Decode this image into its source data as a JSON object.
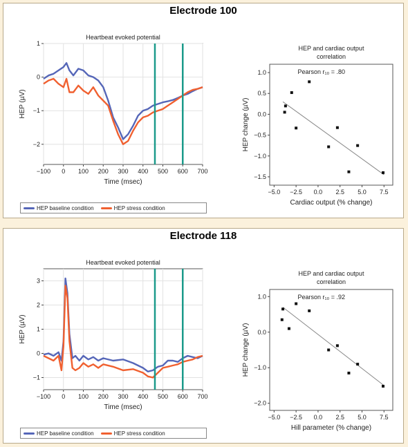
{
  "chart_data": [
    {
      "title": "Electrode 100",
      "hep": {
        "type": "line",
        "title": "Heartbeat evoked potential",
        "xlabel": "Time (msec)",
        "ylabel": "HEP (µV)",
        "xlim": [
          -100,
          700
        ],
        "ylim": [
          -2.6,
          1
        ],
        "xticks": [
          -100,
          0,
          100,
          200,
          300,
          400,
          500,
          600,
          700
        ],
        "yticks": [
          1,
          0,
          -1,
          -2
        ],
        "vlines": [
          460,
          600
        ],
        "series": [
          {
            "name": "HEP baseline condition",
            "color": "#5566b8",
            "x": [
              -100,
              -75,
              -50,
              -25,
              0,
              15,
              30,
              50,
              75,
              100,
              125,
              150,
              175,
              200,
              225,
              250,
              275,
              300,
              325,
              350,
              375,
              400,
              425,
              450,
              475,
              500,
              525,
              550,
              575,
              600,
              625,
              650,
              675,
              700
            ],
            "y": [
              -0.05,
              0.05,
              0.1,
              0.2,
              0.3,
              0.42,
              0.2,
              0.05,
              0.25,
              0.2,
              0.05,
              0.0,
              -0.1,
              -0.3,
              -0.7,
              -1.2,
              -1.5,
              -1.85,
              -1.7,
              -1.45,
              -1.15,
              -1.0,
              -0.95,
              -0.85,
              -0.8,
              -0.75,
              -0.72,
              -0.68,
              -0.62,
              -0.55,
              -0.5,
              -0.42,
              -0.35,
              -0.3
            ]
          },
          {
            "name": "HEP stress condition",
            "color": "#f06030",
            "x": [
              -100,
              -75,
              -50,
              -25,
              0,
              15,
              30,
              50,
              75,
              100,
              125,
              150,
              175,
              200,
              225,
              250,
              275,
              300,
              325,
              350,
              375,
              400,
              425,
              450,
              475,
              500,
              525,
              550,
              575,
              600,
              625,
              650,
              675,
              700
            ],
            "y": [
              -0.2,
              -0.1,
              -0.05,
              -0.2,
              -0.3,
              -0.05,
              -0.45,
              -0.45,
              -0.25,
              -0.4,
              -0.5,
              -0.3,
              -0.55,
              -0.7,
              -0.85,
              -1.3,
              -1.7,
              -2.0,
              -1.9,
              -1.6,
              -1.35,
              -1.2,
              -1.15,
              -1.05,
              -1.0,
              -0.95,
              -0.85,
              -0.75,
              -0.65,
              -0.55,
              -0.45,
              -0.38,
              -0.35,
              -0.3
            ]
          }
        ]
      },
      "corr": {
        "type": "scatter",
        "title": "HEP and cardiac output correlation",
        "annotation": "Pearson r₁₀ = .80",
        "xlabel": "Cardiac output (% change)",
        "ylabel": "HEP change (µV)",
        "xlim": [
          -5.5,
          8.5
        ],
        "ylim": [
          -1.7,
          1.2
        ],
        "xticks": [
          -5.0,
          -2.5,
          0.0,
          2.5,
          5.0,
          7.5
        ],
        "xticklabels": [
          "-5.0",
          "-2.5",
          "0.0",
          "2.5",
          "5.0",
          "7.5"
        ],
        "yticks": [
          1.0,
          0.5,
          0.0,
          -0.5,
          -1.0,
          -1.5
        ],
        "yticklabels": [
          "1.0",
          "0.5",
          "0.0",
          "-0.5",
          "-1.0",
          "-1.5"
        ],
        "points": [
          [
            -3.8,
            0.05
          ],
          [
            -3.7,
            0.2
          ],
          [
            -3.0,
            0.52
          ],
          [
            -2.5,
            -0.33
          ],
          [
            -1.0,
            0.78
          ],
          [
            1.2,
            -0.78
          ],
          [
            2.2,
            -0.32
          ],
          [
            3.5,
            -1.38
          ],
          [
            4.5,
            -0.75
          ],
          [
            7.4,
            -1.4
          ]
        ],
        "fit": [
          [
            -4.0,
            0.3
          ],
          [
            7.5,
            -1.45
          ]
        ]
      },
      "legend": [
        "HEP baseline condition",
        "HEP stress condition"
      ]
    },
    {
      "title": "Electrode 118",
      "hep": {
        "type": "line",
        "title": "Heartbeat evoked potential",
        "xlabel": "Time (msec)",
        "ylabel": "HEP (µV)",
        "xlim": [
          -100,
          700
        ],
        "ylim": [
          -1.5,
          3.5
        ],
        "xticks": [
          -100,
          0,
          100,
          200,
          300,
          400,
          500,
          600,
          700
        ],
        "yticks": [
          3,
          2,
          1,
          0,
          -1
        ],
        "vlines": [
          460,
          600
        ],
        "series": [
          {
            "name": "HEP baseline condition",
            "color": "#5566b8",
            "x": [
              -100,
              -75,
              -50,
              -25,
              -10,
              0,
              10,
              20,
              30,
              45,
              60,
              80,
              100,
              125,
              150,
              175,
              200,
              250,
              300,
              350,
              400,
              425,
              450,
              475,
              500,
              525,
              550,
              575,
              600,
              625,
              650,
              675,
              700
            ],
            "y": [
              -0.05,
              0.0,
              -0.1,
              0.05,
              -0.3,
              0.5,
              3.1,
              2.5,
              0.8,
              -0.2,
              -0.1,
              -0.3,
              -0.1,
              -0.25,
              -0.15,
              -0.3,
              -0.2,
              -0.3,
              -0.25,
              -0.4,
              -0.6,
              -0.75,
              -0.7,
              -0.55,
              -0.5,
              -0.3,
              -0.3,
              -0.35,
              -0.2,
              -0.1,
              -0.15,
              -0.2,
              -0.1
            ]
          },
          {
            "name": "HEP stress condition",
            "color": "#f06030",
            "x": [
              -100,
              -75,
              -50,
              -25,
              -10,
              0,
              10,
              20,
              30,
              45,
              60,
              80,
              100,
              125,
              150,
              175,
              200,
              250,
              300,
              350,
              400,
              425,
              450,
              475,
              500,
              525,
              550,
              575,
              600,
              625,
              650,
              675,
              700
            ],
            "y": [
              -0.1,
              -0.2,
              -0.3,
              -0.1,
              -0.7,
              0.3,
              2.8,
              2.3,
              0.5,
              -0.6,
              -0.7,
              -0.6,
              -0.4,
              -0.55,
              -0.45,
              -0.6,
              -0.45,
              -0.55,
              -0.7,
              -0.65,
              -0.8,
              -0.95,
              -1.0,
              -0.8,
              -0.6,
              -0.55,
              -0.5,
              -0.45,
              -0.35,
              -0.3,
              -0.25,
              -0.15,
              -0.1
            ]
          }
        ]
      },
      "corr": {
        "type": "scatter",
        "title": "HEP and cardiac output correlation",
        "annotation": "Pearson r₁₀ = .92",
        "xlabel": "Hill parameter (% change)",
        "ylabel": "HEP change (µV)",
        "xlim": [
          -5.5,
          8.5
        ],
        "ylim": [
          -2.2,
          1.2
        ],
        "xticks": [
          -5.0,
          -2.5,
          0.0,
          2.5,
          5.0,
          7.5
        ],
        "xticklabels": [
          "-5.0",
          "-2.5",
          "0.0",
          "2.5",
          "5.0",
          "7.5"
        ],
        "yticks": [
          1.0,
          0.0,
          -1.0,
          -2.0
        ],
        "yticklabels": [
          "1.0",
          "0.0",
          "-1.0",
          "-2.0"
        ],
        "points": [
          [
            -4.0,
            0.65
          ],
          [
            -4.1,
            0.35
          ],
          [
            -3.3,
            0.1
          ],
          [
            -2.5,
            0.8
          ],
          [
            -1.0,
            0.6
          ],
          [
            1.2,
            -0.5
          ],
          [
            2.2,
            -0.38
          ],
          [
            3.5,
            -1.15
          ],
          [
            4.5,
            -0.9
          ],
          [
            7.4,
            -1.52
          ]
        ],
        "fit": [
          [
            -4.0,
            0.7
          ],
          [
            7.5,
            -1.5
          ]
        ]
      },
      "legend": [
        "HEP baseline condition",
        "HEP stress condition"
      ]
    }
  ]
}
